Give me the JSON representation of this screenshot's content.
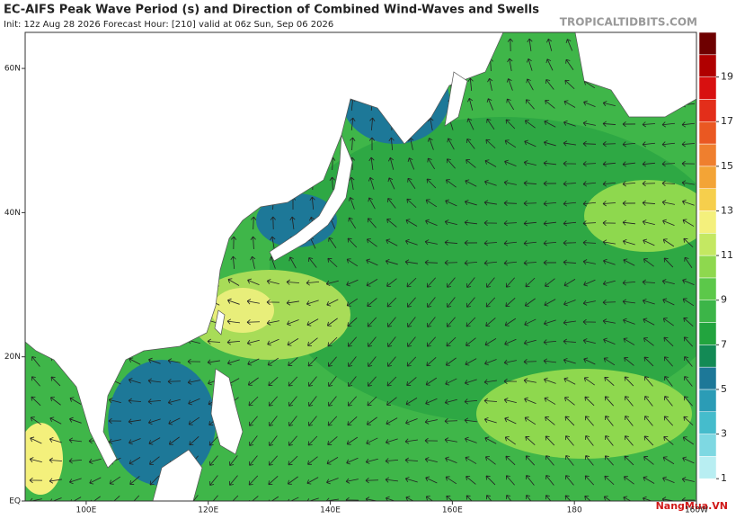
{
  "header": {
    "title": "EC-AIFS Peak Wave Period (s) and Direction of Combined Wind-Waves and Swells",
    "subtitle": "Init: 12z Aug 28 2026   Forecast Hour: [210]   valid at 06z Sun, Sep 06 2026",
    "source": "TROPICALTIDBITS.COM"
  },
  "map": {
    "lon_range": [
      90,
      200
    ],
    "lat_range": [
      0,
      65
    ],
    "lat_ticks": [
      {
        "value": 60,
        "label": "60N"
      },
      {
        "value": 40,
        "label": "40N"
      },
      {
        "value": 20,
        "label": "20N"
      },
      {
        "value": 0,
        "label": "EQ"
      }
    ],
    "lon_ticks": [
      {
        "value": 100,
        "label": "100E"
      },
      {
        "value": 120,
        "label": "120E"
      },
      {
        "value": 140,
        "label": "140E"
      },
      {
        "value": 160,
        "label": "160E"
      },
      180,
      {
        "value": 200,
        "label": "160W"
      }
    ]
  },
  "colorbar": {
    "colors": [
      "#ffffff",
      "#b8eef2",
      "#7ed8e2",
      "#45bccc",
      "#2b9cb6",
      "#1d7898",
      "#138a55",
      "#22a43e",
      "#3cb548",
      "#5cc84a",
      "#8ed84e",
      "#c4e862",
      "#f4f07c",
      "#f6cf4c",
      "#f3a436",
      "#ef7f2e",
      "#ea5822",
      "#e32e1a",
      "#d81010",
      "#b00000",
      "#6e0000"
    ],
    "ticks": [
      1,
      3,
      5,
      7,
      9,
      11,
      13,
      15,
      17,
      19
    ]
  },
  "watermark": "NangMua.VN"
}
